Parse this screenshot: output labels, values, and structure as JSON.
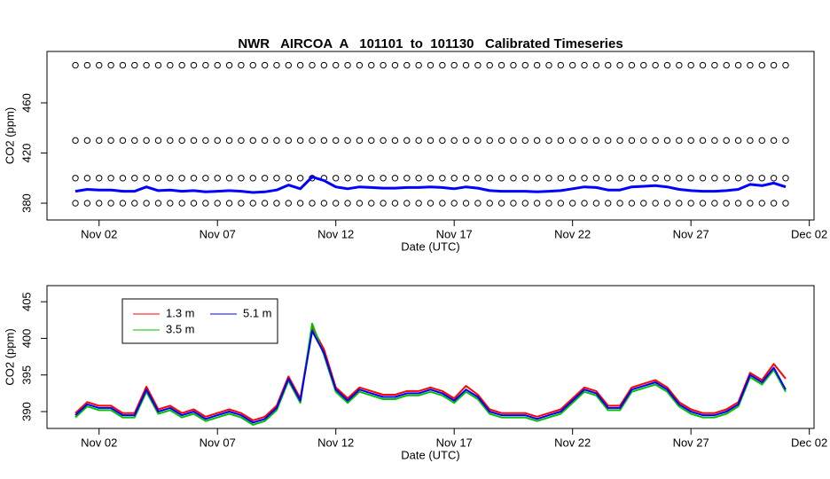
{
  "chart_data": [
    {
      "type": "scatter",
      "title": "NWR   AIRCOA  A   101101  to  101130   Calibrated Timeseries",
      "xlabel": "Date (UTC)",
      "ylabel": "CO2 (ppm)",
      "x": [
        1,
        1.5,
        2,
        2.5,
        3,
        3.5,
        4,
        4.5,
        5,
        5.5,
        6,
        6.5,
        7,
        7.5,
        8,
        8.5,
        9,
        9.5,
        10,
        10.5,
        11,
        11.5,
        12,
        12.5,
        13,
        13.5,
        14,
        14.5,
        15,
        15.5,
        16,
        16.5,
        17,
        17.5,
        18,
        18.5,
        19,
        19.5,
        20,
        20.5,
        21,
        21.5,
        22,
        22.5,
        23,
        23.5,
        24,
        24.5,
        25,
        25.5,
        26,
        26.5,
        27,
        27.5,
        28,
        28.5,
        29,
        29.5,
        30,
        30.5,
        31
      ],
      "xlim": [
        -0.2,
        32.2
      ],
      "xticks": [
        {
          "value": 2,
          "label": "Nov 02"
        },
        {
          "value": 7,
          "label": "Nov 07"
        },
        {
          "value": 12,
          "label": "Nov 12"
        },
        {
          "value": 17,
          "label": "Nov 17"
        },
        {
          "value": 22,
          "label": "Nov 22"
        },
        {
          "value": 27,
          "label": "Nov 27"
        },
        {
          "value": 32,
          "label": "Dec 02"
        }
      ],
      "ylim": [
        366.6,
        501
      ],
      "yticks": [
        380,
        420,
        460
      ],
      "series": [
        {
          "color": "#000000",
          "marker": "circle",
          "values": [
            490,
            490,
            490,
            490,
            490,
            490,
            490,
            490,
            490,
            490,
            490,
            490,
            490,
            490,
            490,
            490,
            490,
            490,
            490,
            490,
            490,
            490,
            490,
            490,
            490,
            490,
            490,
            490,
            490,
            490,
            490,
            490,
            490,
            490,
            490,
            490,
            490,
            490,
            490,
            490,
            490,
            490,
            490,
            490,
            490,
            490,
            490,
            490,
            490,
            490,
            490,
            490,
            490,
            490,
            490,
            490,
            490,
            490,
            490,
            490,
            490
          ]
        },
        {
          "color": "#000000",
          "marker": "circle",
          "values": [
            430,
            430,
            430,
            430,
            430,
            430,
            430,
            430,
            430,
            430,
            430,
            430,
            430,
            430,
            430,
            430,
            430,
            430,
            430,
            430,
            430,
            430,
            430,
            430,
            430,
            430,
            430,
            430,
            430,
            430,
            430,
            430,
            430,
            430,
            430,
            430,
            430,
            430,
            430,
            430,
            430,
            430,
            430,
            430,
            430,
            430,
            430,
            430,
            430,
            430,
            430,
            430,
            430,
            430,
            430,
            430,
            430,
            430,
            430,
            430,
            430
          ]
        },
        {
          "color": "#000000",
          "marker": "circle",
          "values": [
            400,
            400,
            400,
            400,
            400,
            400,
            400,
            400,
            400,
            400,
            400,
            400,
            400,
            400,
            400,
            400,
            400,
            400,
            400,
            400,
            400,
            400,
            400,
            400,
            400,
            400,
            400,
            400,
            400,
            400,
            400,
            400,
            400,
            400,
            400,
            400,
            400,
            400,
            400,
            400,
            400,
            400,
            400,
            400,
            400,
            400,
            400,
            400,
            400,
            400,
            400,
            400,
            400,
            400,
            400,
            400,
            400,
            400,
            400,
            400,
            400
          ]
        },
        {
          "color": "#000000",
          "marker": "circle",
          "values": [
            380,
            380,
            380,
            380,
            380,
            380,
            380,
            380,
            380,
            380,
            380,
            380,
            380,
            380,
            380,
            380,
            380,
            380,
            380,
            380,
            380,
            380,
            380,
            380,
            380,
            380,
            380,
            380,
            380,
            380,
            380,
            380,
            380,
            380,
            380,
            380,
            380,
            380,
            380,
            380,
            380,
            380,
            380,
            380,
            380,
            380,
            380,
            380,
            380,
            380,
            380,
            380,
            380,
            380,
            380,
            380,
            380,
            380,
            380,
            380,
            380
          ]
        },
        {
          "color": "#0000ff",
          "marker": "line",
          "values": [
            389.5,
            391,
            390.5,
            390.5,
            389.5,
            389.5,
            393,
            390,
            390.5,
            389.5,
            390,
            389,
            389.5,
            390,
            389.5,
            388.5,
            389,
            390.5,
            394.5,
            391.5,
            401,
            398,
            393,
            391.5,
            393,
            392.5,
            392,
            392,
            392.5,
            392.5,
            393,
            392.5,
            391.5,
            393,
            392,
            390,
            389.5,
            389.5,
            389.5,
            389,
            389.5,
            390,
            391.5,
            393,
            392.5,
            390.5,
            390.5,
            393,
            393.5,
            394,
            393,
            391,
            390,
            389.5,
            389.5,
            390,
            391,
            395,
            394,
            396,
            393
          ]
        }
      ]
    },
    {
      "type": "line",
      "xlabel": "Date (UTC)",
      "ylabel": "CO2 (ppm)",
      "legend": "top-left",
      "x": [
        1,
        1.5,
        2,
        2.5,
        3,
        3.5,
        4,
        4.5,
        5,
        5.5,
        6,
        6.5,
        7,
        7.5,
        8,
        8.5,
        9,
        9.5,
        10,
        10.5,
        11,
        11.5,
        12,
        12.5,
        13,
        13.5,
        14,
        14.5,
        15,
        15.5,
        16,
        16.5,
        17,
        17.5,
        18,
        18.5,
        19,
        19.5,
        20,
        20.5,
        21,
        21.5,
        22,
        22.5,
        23,
        23.5,
        24,
        24.5,
        25,
        25.5,
        26,
        26.5,
        27,
        27.5,
        28,
        28.5,
        29,
        29.5,
        30,
        30.5,
        31
      ],
      "xlim": [
        -0.2,
        32.2
      ],
      "xticks": [
        {
          "value": 2,
          "label": "Nov 02"
        },
        {
          "value": 7,
          "label": "Nov 07"
        },
        {
          "value": 12,
          "label": "Nov 12"
        },
        {
          "value": 17,
          "label": "Nov 17"
        },
        {
          "value": 22,
          "label": "Nov 22"
        },
        {
          "value": 27,
          "label": "Nov 27"
        },
        {
          "value": 32,
          "label": "Dec 02"
        }
      ],
      "ylim": [
        387.7,
        407.2
      ],
      "yticks": [
        390,
        395,
        400,
        405
      ],
      "series": [
        {
          "name": "1.3 m",
          "color": "#ff0000",
          "values": [
            389.8,
            391.3,
            390.8,
            390.8,
            389.8,
            389.8,
            393.4,
            390.3,
            390.8,
            389.8,
            390.3,
            389.3,
            389.8,
            390.3,
            389.8,
            388.8,
            389.3,
            390.8,
            394.8,
            391.8,
            401.5,
            398.5,
            393.3,
            391.8,
            393.3,
            392.8,
            392.3,
            392.3,
            392.8,
            392.8,
            393.3,
            392.8,
            391.8,
            393.5,
            392.3,
            390.3,
            389.8,
            389.8,
            389.8,
            389.3,
            389.8,
            390.3,
            391.8,
            393.3,
            392.8,
            390.8,
            390.8,
            393.3,
            393.8,
            394.3,
            393.3,
            391.3,
            390.3,
            389.8,
            389.8,
            390.3,
            391.3,
            395.3,
            394.3,
            396.5,
            394.5
          ]
        },
        {
          "name": "3.5 m",
          "color": "#00c000",
          "values": [
            389.2,
            390.7,
            390.2,
            390.2,
            389.2,
            389.2,
            392.7,
            389.7,
            390.2,
            389.2,
            389.7,
            388.7,
            389.2,
            389.7,
            389.2,
            388.2,
            388.7,
            390.2,
            394.2,
            391.2,
            402,
            397.7,
            392.7,
            391.2,
            392.7,
            392.2,
            391.7,
            391.7,
            392.2,
            392.2,
            392.7,
            392.2,
            391.2,
            392.7,
            391.7,
            389.7,
            389.2,
            389.2,
            389.2,
            388.7,
            389.2,
            389.7,
            391.2,
            392.7,
            392.2,
            390.2,
            390.2,
            392.7,
            393.2,
            393.7,
            392.7,
            390.7,
            389.7,
            389.2,
            389.2,
            389.7,
            390.7,
            394.7,
            393.7,
            395.7,
            392.7
          ]
        },
        {
          "name": "5.1 m",
          "color": "#0000ff",
          "values": [
            389.5,
            391,
            390.5,
            390.5,
            389.5,
            389.5,
            393,
            390,
            390.5,
            389.5,
            390,
            389,
            389.5,
            390,
            389.5,
            388.5,
            389,
            390.5,
            394.5,
            391.5,
            401,
            398,
            393,
            391.5,
            393,
            392.5,
            392,
            392,
            392.5,
            392.5,
            393,
            392.5,
            391.5,
            393,
            392,
            390,
            389.5,
            389.5,
            389.5,
            389,
            389.5,
            390,
            391.5,
            393,
            392.5,
            390.5,
            390.5,
            393,
            393.5,
            394,
            393,
            391,
            390,
            389.5,
            389.5,
            390,
            391,
            395,
            394,
            396,
            393
          ]
        }
      ]
    }
  ]
}
